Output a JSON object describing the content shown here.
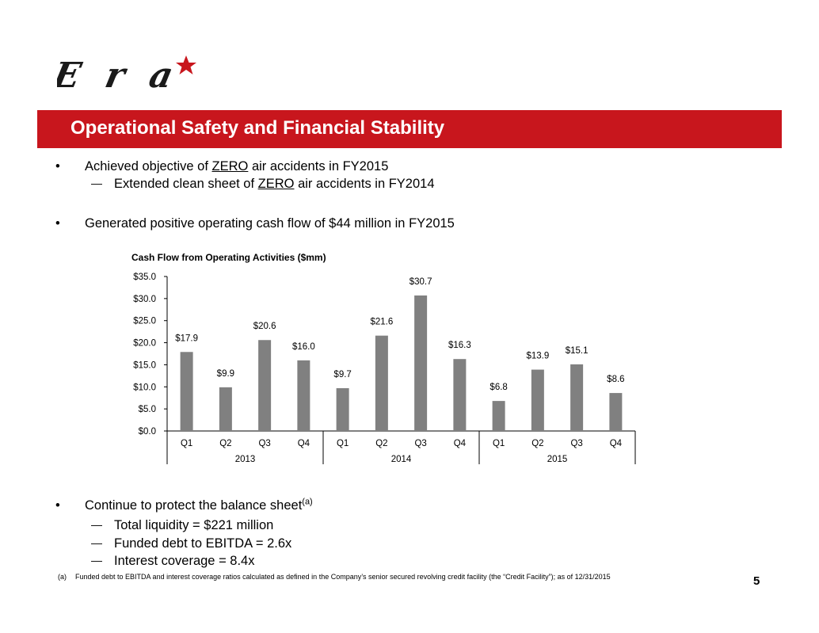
{
  "brand": {
    "logo_text": "Era",
    "accent_color": "#c8161d"
  },
  "header": {
    "title": "Operational Safety and Financial Stability"
  },
  "bullets_top": [
    {
      "pre": "Achieved objective of ",
      "em": "ZERO",
      "post": " air accidents in FY2015",
      "sub": {
        "pre": "Extended clean sheet of ",
        "em": "ZERO",
        "post": " air accidents in FY2014"
      }
    },
    {
      "text": "Generated positive operating cash flow of $44 million in FY2015"
    }
  ],
  "bullet_marker": "•",
  "sub_marker": "—",
  "chart_data": {
    "type": "bar",
    "title": "Cash Flow from Operating Activities ($mm)",
    "categories": [
      "Q1",
      "Q2",
      "Q3",
      "Q4",
      "Q1",
      "Q2",
      "Q3",
      "Q4",
      "Q1",
      "Q2",
      "Q3",
      "Q4"
    ],
    "groups": [
      {
        "label": "2013",
        "start": 0,
        "end": 3
      },
      {
        "label": "2014",
        "start": 4,
        "end": 7
      },
      {
        "label": "2015",
        "start": 8,
        "end": 11
      }
    ],
    "values": [
      17.9,
      9.9,
      20.6,
      16.0,
      9.7,
      21.6,
      30.7,
      16.3,
      6.8,
      13.9,
      15.1,
      8.6
    ],
    "data_labels": [
      "$17.9",
      "$9.9",
      "$20.6",
      "$16.0",
      "$9.7",
      "$21.6",
      "$30.7",
      "$16.3",
      "$6.8",
      "$13.9",
      "$15.1",
      "$8.6"
    ],
    "yticks": [
      0,
      5,
      10,
      15,
      20,
      25,
      30,
      35
    ],
    "ytick_labels": [
      "$0.0",
      "$5.0",
      "$10.0",
      "$15.0",
      "$20.0",
      "$25.0",
      "$30.0",
      "$35.0"
    ],
    "ylim": [
      0,
      35
    ],
    "xlabel": "",
    "ylabel": "",
    "grid": false,
    "bar_color": "#808080"
  },
  "bullets_bottom": {
    "text": "Continue to protect the balance sheet",
    "note_ref": "(a)",
    "subs": [
      "Total liquidity = $221 million",
      "Funded debt to EBITDA = 2.6x",
      "Interest coverage = 8.4x"
    ]
  },
  "footnote": {
    "mark": "(a)",
    "text": "Funded debt to EBITDA and interest coverage ratios calculated as defined in the Company’s senior secured revolving credit facility (the “Credit Facility”); as of 12/31/2015"
  },
  "page_number": "5"
}
